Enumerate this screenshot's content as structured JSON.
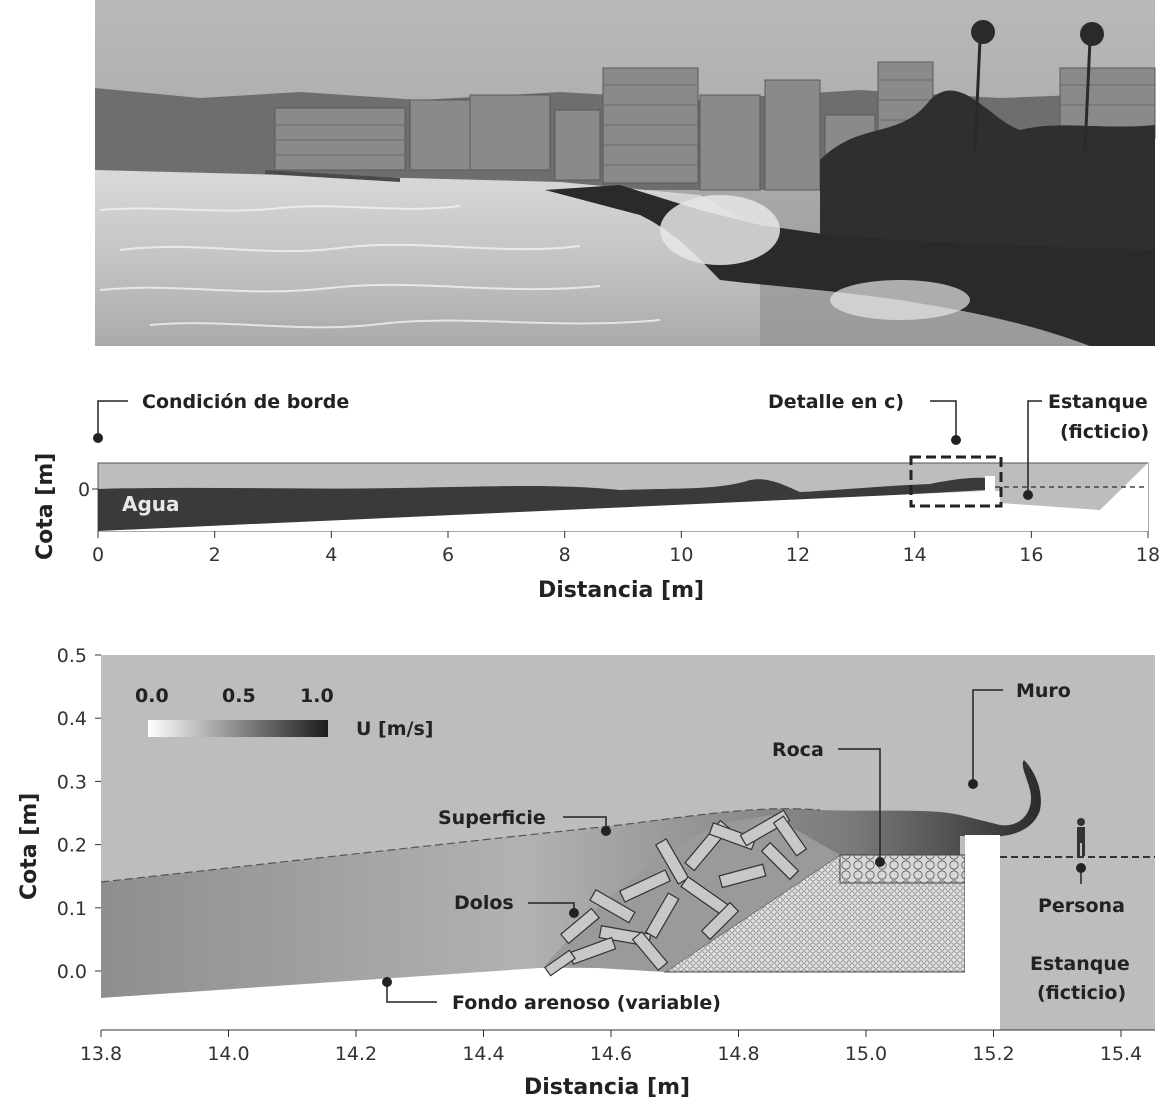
{
  "panel_b": {
    "labels": {
      "boundary": "Condición de borde",
      "detail": "Detalle en  c)",
      "tank_line1": "Estanque",
      "tank_line2": "(ficticio)",
      "water": "Agua"
    },
    "xlabel": "Distancia [m]",
    "ylabel": "Cota [m]",
    "xticks": [
      "0",
      "2",
      "4",
      "6",
      "8",
      "10",
      "12",
      "14",
      "16",
      "18"
    ],
    "yticks": [
      "0"
    ]
  },
  "panel_c": {
    "labels": {
      "colorbar_ticks": [
        "0.0",
        "0.5",
        "1.0"
      ],
      "colorbar_title": "U [m/s]",
      "wall": "Muro",
      "rock": "Roca",
      "surface": "Superficie",
      "dolos": "Dolos",
      "person": "Persona",
      "tank_line1": "Estanque",
      "tank_line2": "(ficticio)",
      "bed": "Fondo arenoso (variable)"
    },
    "xlabel": "Distancia [m]",
    "ylabel": "Cota [m]",
    "xticks": [
      "13.8",
      "14.0",
      "14.2",
      "14.4",
      "14.6",
      "14.8",
      "15.0",
      "15.2",
      "15.4"
    ],
    "yticks": [
      "0.5",
      "0.4",
      "0.3",
      "0.2",
      "0.1",
      "0.0"
    ]
  },
  "colors": {
    "background_gray": "#bdbdbd",
    "water_dark": "#3a3a3a",
    "bed_white": "#ffffff"
  }
}
